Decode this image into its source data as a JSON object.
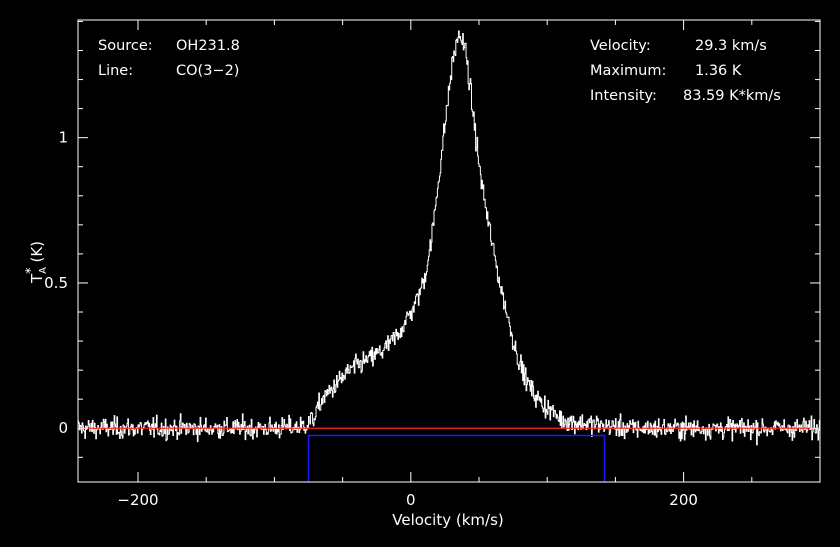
{
  "chart_data": {
    "type": "line",
    "title": "",
    "xlabel": "Velocity (km/s)",
    "ylabel": {
      "base": "T",
      "subscript": "A",
      "superscript": "*",
      "unit": "(K)"
    },
    "xlim": [
      -244,
      300
    ],
    "ylim": [
      -0.185,
      1.405
    ],
    "x_ticks": [
      -200,
      0,
      200
    ],
    "x_tick_labels": [
      "−200",
      "0",
      "200"
    ],
    "y_ticks": [
      0,
      0.5,
      1
    ],
    "y_tick_labels": [
      "0",
      "0.5",
      "1"
    ],
    "grid": false,
    "legend": "none",
    "colors": {
      "background": "#000000",
      "frame": "#ffffff",
      "spectrum": "#ffffff",
      "baseline": "#ff2a1a",
      "window": "#1a1aff"
    },
    "info_left": [
      {
        "label": "Source:",
        "value": "OH231.8"
      },
      {
        "label": "Line:",
        "value": "CO(3−2)"
      }
    ],
    "info_right": [
      {
        "label": "Velocity:",
        "value": "29.3 km/s"
      },
      {
        "label": "Maximum:",
        "value": "1.36 K"
      },
      {
        "label": "Intensity:",
        "value": "83.59 K*km/s"
      }
    ],
    "series": [
      {
        "style": "histogram",
        "noise_rms": 0.018,
        "x": [
          -244,
          -100,
          -80,
          -72,
          -65,
          -55,
          -45,
          -30,
          -20,
          -10,
          0,
          5,
          10,
          15,
          20,
          25,
          30,
          35,
          40,
          45,
          50,
          55,
          60,
          65,
          70,
          75,
          80,
          85,
          90,
          95,
          100,
          105,
          110,
          120,
          140,
          160,
          300
        ],
        "y": [
          0,
          0,
          0.005,
          0.03,
          0.1,
          0.15,
          0.2,
          0.24,
          0.27,
          0.32,
          0.4,
          0.45,
          0.52,
          0.65,
          0.85,
          1.05,
          1.25,
          1.36,
          1.3,
          1.1,
          0.9,
          0.75,
          0.62,
          0.5,
          0.4,
          0.3,
          0.22,
          0.16,
          0.12,
          0.09,
          0.07,
          0.05,
          0.03,
          0.02,
          0.01,
          0,
          0
        ]
      }
    ],
    "baseline": {
      "y": 0
    },
    "window": {
      "x_start": -75,
      "x_end": 142,
      "y_top": -0.025,
      "y_bottom": -0.185
    }
  }
}
